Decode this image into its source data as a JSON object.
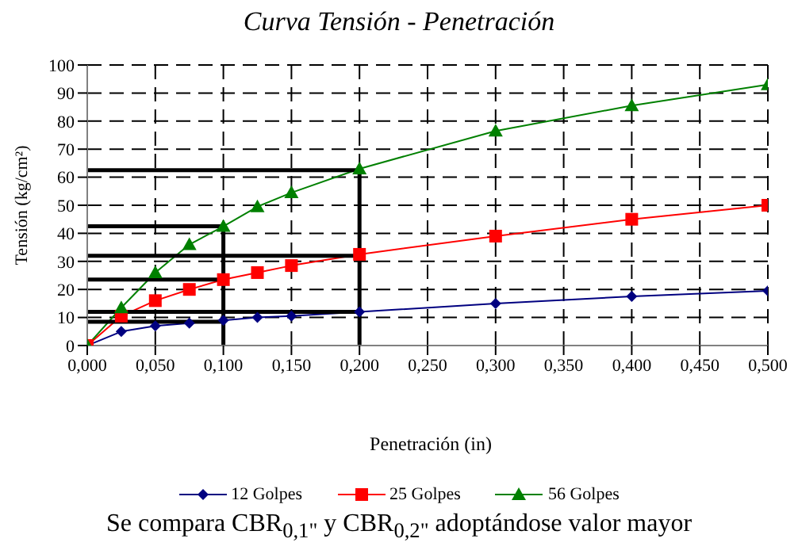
{
  "chart_data": {
    "type": "line",
    "title": "Curva Tensión - Penetración",
    "xlabel": "Penetración (in)",
    "ylabel": "Tensión (kg/cm²)",
    "annotations": [
      "Se compara CBR$_{0,1\"}$ y CBR$_{0,2\"}$  adoptándose valor mayor"
    ],
    "x": [
      0,
      0.025,
      0.05,
      0.075,
      0.1,
      0.125,
      0.15,
      0.2,
      0.3,
      0.4,
      0.5
    ],
    "series": [
      {
        "name": "12 Golpes",
        "color": "#000080",
        "marker": "diamond",
        "values": [
          0,
          5,
          7,
          8,
          9,
          10,
          10.5,
          12,
          15,
          17.5,
          19.5
        ]
      },
      {
        "name": "25 Golpes",
        "color": "#ff0000",
        "marker": "square",
        "values": [
          0,
          10.5,
          16,
          20,
          23.5,
          26,
          28.5,
          32.5,
          39,
          45,
          50
        ]
      },
      {
        "name": "56 Golpes",
        "color": "#008000",
        "marker": "triangle",
        "values": [
          0,
          13.5,
          26,
          36,
          42.5,
          49.5,
          54.5,
          63,
          76.5,
          85.5,
          93
        ]
      },
      {
        "color": "#000000",
        "marker": "none",
        "x": [
          0,
          0.1
        ],
        "values": [
          8.5,
          8.5
        ]
      },
      {
        "color": "#000000",
        "marker": "none",
        "x": [
          0,
          0.1
        ],
        "values": [
          23.5,
          23.5
        ]
      },
      {
        "color": "#000000",
        "marker": "none",
        "x": [
          0,
          0.1,
          0.1
        ],
        "values": [
          42.5,
          42.5,
          0
        ]
      },
      {
        "color": "#000000",
        "marker": "none",
        "x": [
          0,
          0.2
        ],
        "values": [
          12,
          12
        ]
      },
      {
        "color": "#000000",
        "marker": "none",
        "x": [
          0,
          0.2
        ],
        "values": [
          32,
          32
        ]
      },
      {
        "color": "#000000",
        "marker": "none",
        "x": [
          0,
          0.2,
          0.2
        ],
        "values": [
          62.5,
          62.5,
          0
        ]
      }
    ],
    "xlim": [
      0,
      0.5
    ],
    "xticks": [
      {
        "value": 0,
        "label": "0,000"
      },
      {
        "value": 0.05,
        "label": "0,050"
      },
      {
        "value": 0.1,
        "label": "0,100"
      },
      {
        "value": 0.15,
        "label": "0,150"
      },
      {
        "value": 0.2,
        "label": "0,200"
      },
      {
        "value": 0.25,
        "label": "0,250"
      },
      {
        "value": 0.3,
        "label": "0,300"
      },
      {
        "value": 0.35,
        "label": "0,350"
      },
      {
        "value": 0.4,
        "label": "0,400"
      },
      {
        "value": 0.45,
        "label": "0,450"
      },
      {
        "value": 0.5,
        "label": "0,500"
      }
    ],
    "ylim": [
      0,
      100
    ],
    "yticks": [
      0,
      10,
      20,
      30,
      40,
      50,
      60,
      70,
      80,
      90,
      100
    ],
    "grid": true,
    "legend": "bottom"
  }
}
